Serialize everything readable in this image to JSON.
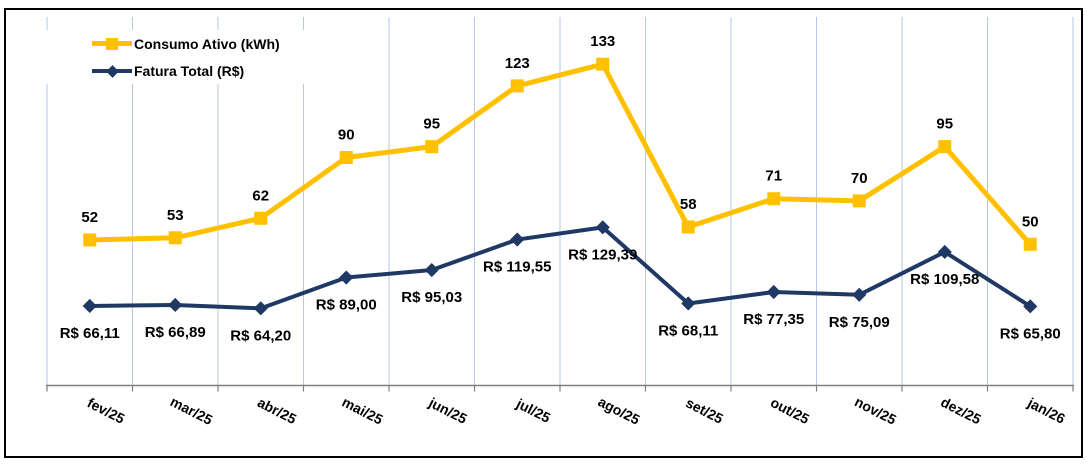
{
  "chart_data": {
    "type": "line",
    "title": "",
    "categories": [
      "fev/25",
      "mar/25",
      "abr/25",
      "mai/25",
      "jun/25",
      "jul/25",
      "ago/25",
      "set/25",
      "out/25",
      "nov/25",
      "dez/25",
      "jan/26"
    ],
    "series": [
      {
        "name": "Consumo Ativo (kWh)",
        "color": "#FFC000",
        "marker": "square",
        "label_position": "above",
        "values": [
          52,
          53,
          62,
          90,
          95,
          123,
          133,
          58,
          71,
          70,
          95,
          50
        ],
        "labels": [
          "52",
          "53",
          "62",
          "90",
          "95",
          "123",
          "133",
          "58",
          "71",
          "70",
          "95",
          "50"
        ]
      },
      {
        "name": "Fatura Total (R$)",
        "color": "#1F3864",
        "marker": "diamond",
        "label_position": "below",
        "values": [
          66.11,
          66.89,
          64.2,
          89.0,
          95.03,
          119.55,
          129.39,
          68.11,
          77.35,
          75.09,
          109.58,
          65.8
        ],
        "labels": [
          "R$ 66,11",
          "R$ 66,89",
          "R$ 64,20",
          "R$ 89,00",
          "R$ 95,03",
          "R$ 119,55",
          "R$ 129,39",
          "R$ 68,11",
          "R$ 77,35",
          "R$ 75,09",
          "R$ 109,58",
          "R$ 65,80"
        ]
      }
    ],
    "layout": {
      "legend_position": "top-left",
      "grid": "vertical-only",
      "y_axis_visible": false,
      "x_label_rotation_deg": 27,
      "consumo_value_range": [
        40,
        140
      ],
      "fatura_value_range": [
        40,
        140
      ]
    },
    "colors": {
      "gridline": "#B4C7E7",
      "axis": "#808080",
      "data_label": "#000000",
      "border": "#000000",
      "background": "#FFFFFF"
    }
  }
}
